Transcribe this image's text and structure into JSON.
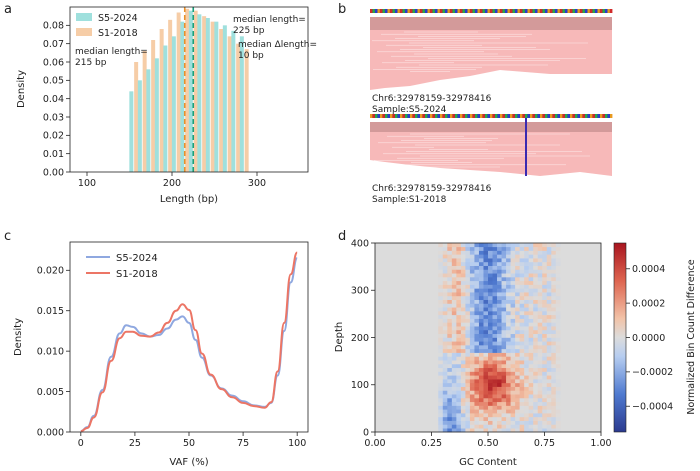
{
  "panel_letters": {
    "a": "a",
    "b": "b",
    "c": "c",
    "d": "d"
  },
  "chart_data": [
    {
      "panel": "a",
      "type": "bar",
      "xlabel": "Length (bp)",
      "ylabel": "Density",
      "xlim": [
        80,
        360
      ],
      "ylim": [
        0,
        0.09
      ],
      "xticks": [
        100,
        200,
        300
      ],
      "yticks": [
        0.0,
        0.01,
        0.02,
        0.03,
        0.04,
        0.05,
        0.06,
        0.07,
        0.08
      ],
      "ytick_labels": [
        "0.00",
        "0.01",
        "0.02",
        "0.03",
        "0.04",
        "0.05",
        "0.06",
        "0.07",
        "0.08"
      ],
      "categories": [
        155,
        165,
        175,
        185,
        195,
        205,
        215,
        225,
        235,
        245,
        255,
        265,
        275,
        285
      ],
      "series": [
        {
          "name": "S5-2024",
          "color": "#9fe0dd",
          "values": [
            0.044,
            0.05,
            0.056,
            0.062,
            0.069,
            0.074,
            0.082,
            0.088,
            0.086,
            0.084,
            0.082,
            0.08,
            0.077,
            0.074
          ]
        },
        {
          "name": "S1-2018",
          "color": "#f6cda7",
          "values": [
            0.06,
            0.066,
            0.072,
            0.078,
            0.083,
            0.087,
            0.089,
            0.088,
            0.085,
            0.082,
            0.078,
            0.074,
            0.07,
            0.067
          ]
        }
      ],
      "median_lines": [
        {
          "x": 215,
          "color": "#e8902a"
        },
        {
          "x": 225,
          "color": "#1aa07a"
        }
      ],
      "annotations": {
        "median_s1": [
          "median length=",
          "215 bp"
        ],
        "median_s5": [
          "median length=",
          "225 bp"
        ],
        "delta": [
          "median Δlength=",
          "10 bp"
        ]
      }
    },
    {
      "panel": "b",
      "type": "other",
      "tracks": [
        {
          "region": "Chr6:32978159-32978416",
          "sample": "Sample:S5-2024"
        },
        {
          "region": "Chr6:32978159-32978416",
          "sample": "Sample:S1-2018"
        }
      ]
    },
    {
      "panel": "c",
      "type": "line",
      "xlabel": "VAF (%)",
      "ylabel": "Density",
      "xlim": [
        -5,
        105
      ],
      "ylim": [
        0,
        0.0235
      ],
      "xticks": [
        0,
        25,
        50,
        75,
        100
      ],
      "yticks": [
        0.0,
        0.005,
        0.01,
        0.015,
        0.02
      ],
      "ytick_labels": [
        "0.000",
        "0.005",
        "0.010",
        "0.015",
        "0.020"
      ],
      "series": [
        {
          "name": "S5-2024",
          "color": "#8fa8e0",
          "x": [
            0,
            3,
            6,
            10,
            14,
            18,
            21,
            24,
            28,
            32,
            36,
            40,
            44,
            47,
            50,
            53,
            56,
            60,
            65,
            70,
            75,
            80,
            85,
            88,
            91,
            94,
            97,
            100
          ],
          "y": [
            0.0001,
            0.0006,
            0.002,
            0.0052,
            0.0093,
            0.0122,
            0.0132,
            0.013,
            0.0122,
            0.0118,
            0.012,
            0.0128,
            0.0139,
            0.0143,
            0.0135,
            0.0114,
            0.0092,
            0.007,
            0.0054,
            0.0045,
            0.0038,
            0.0033,
            0.0031,
            0.0036,
            0.007,
            0.0125,
            0.0185,
            0.0215
          ]
        },
        {
          "name": "S1-2018",
          "color": "#ec7565",
          "x": [
            0,
            3,
            6,
            10,
            14,
            18,
            21,
            24,
            28,
            32,
            36,
            40,
            44,
            47,
            50,
            53,
            56,
            60,
            65,
            70,
            75,
            80,
            85,
            88,
            91,
            94,
            97,
            100
          ],
          "y": [
            0.0001,
            0.0005,
            0.0018,
            0.0049,
            0.0088,
            0.0116,
            0.0124,
            0.0124,
            0.0119,
            0.0118,
            0.0123,
            0.0135,
            0.015,
            0.0158,
            0.0151,
            0.0126,
            0.0097,
            0.0071,
            0.0053,
            0.0043,
            0.0036,
            0.0032,
            0.003,
            0.0037,
            0.0075,
            0.0135,
            0.0195,
            0.0222
          ]
        }
      ]
    },
    {
      "panel": "d",
      "type": "heatmap",
      "xlabel": "GC Content",
      "ylabel": "Depth",
      "xlim": [
        0,
        1
      ],
      "ylim": [
        0,
        400
      ],
      "xticks": [
        0.0,
        0.25,
        0.5,
        0.75,
        1.0
      ],
      "xtick_labels": [
        "0.00",
        "0.25",
        "0.50",
        "0.75",
        "1.00"
      ],
      "yticks": [
        0,
        100,
        200,
        300,
        400
      ],
      "colorbar": {
        "label": "Normalized Bin Count Difference",
        "range": [
          -0.00055,
          0.00055
        ],
        "ticks": [
          0.0004,
          0.0002,
          0.0,
          -0.0002,
          -0.0004
        ],
        "tick_labels": [
          "0.0004",
          "0.0002",
          "0.0000",
          "−0.0002",
          "−0.0004"
        ]
      },
      "nonzero_gc_range": [
        0.27,
        0.82
      ]
    }
  ]
}
